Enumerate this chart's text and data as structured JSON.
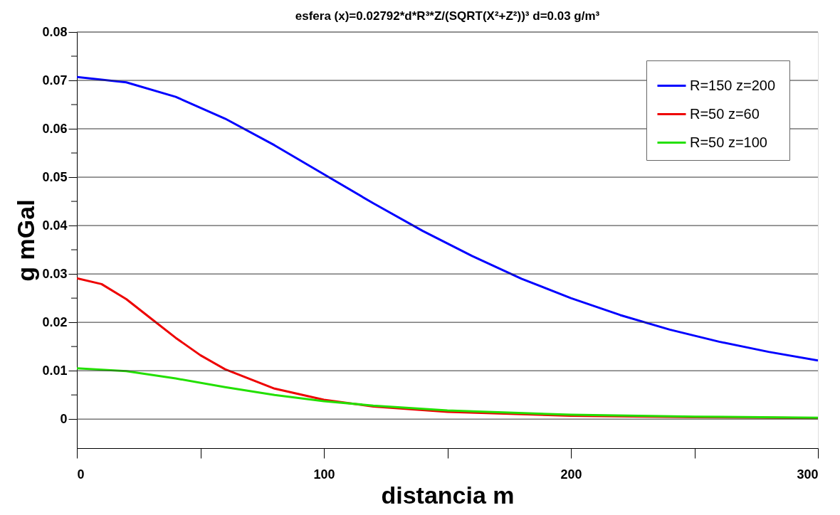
{
  "chart_data": {
    "type": "line",
    "title": "esfera   (x)=0.02792*d*R³*Z/(SQRT(X²+Z²))³          d=0.03 g/m³",
    "xlabel": "distancia  m",
    "ylabel": "g  mGal",
    "xlim": [
      0,
      300
    ],
    "xticks": [
      0,
      {
        "value": 50,
        "label": null
      },
      100,
      {
        "value": 150,
        "label": null
      },
      200,
      {
        "value": 250,
        "label": null
      },
      300
    ],
    "ylim": [
      -0.006,
      0.08
    ],
    "yticks": [
      0,
      {
        "value": 0.005,
        "label": null
      },
      0.01,
      {
        "value": 0.015,
        "label": null
      },
      0.02,
      {
        "value": 0.025,
        "label": null
      },
      0.03,
      {
        "value": 0.035,
        "label": null
      },
      0.04,
      {
        "value": 0.045,
        "label": null
      },
      0.05,
      {
        "value": 0.055,
        "label": null
      },
      0.06,
      {
        "value": 0.065,
        "label": null
      },
      0.07,
      {
        "value": 0.075,
        "label": null
      },
      0.08
    ],
    "grid": "y",
    "legend": "top right",
    "marker": "none",
    "line_style": "solid",
    "series": [
      {
        "name": "R=150  z=200",
        "color": "#0000ff",
        "x": [
          0,
          20,
          40,
          60,
          80,
          100,
          120,
          140,
          160,
          180,
          200,
          220,
          240,
          260,
          280,
          300
        ],
        "values": [
          0.0707,
          0.0696,
          0.0666,
          0.0621,
          0.0566,
          0.0506,
          0.0446,
          0.0389,
          0.0337,
          0.029,
          0.025,
          0.0215,
          0.0185,
          0.016,
          0.0139,
          0.0121
        ]
      },
      {
        "name": "R=50   z=60",
        "color": "#ee0000",
        "x": [
          0,
          10,
          20,
          30,
          40,
          50,
          60,
          80,
          100,
          120,
          150,
          200,
          250,
          300
        ],
        "values": [
          0.0291,
          0.0279,
          0.0248,
          0.0208,
          0.0168,
          0.0132,
          0.0103,
          0.0063,
          0.004,
          0.0026,
          0.0015,
          0.0007,
          0.0004,
          0.0002
        ]
      },
      {
        "name": "R=50   z=100",
        "color": "#22e000",
        "x": [
          0,
          20,
          40,
          60,
          80,
          100,
          120,
          150,
          200,
          250,
          300
        ],
        "values": [
          0.0105,
          0.0099,
          0.0084,
          0.0066,
          0.005,
          0.0037,
          0.0028,
          0.0018,
          0.0009,
          0.0005,
          0.0003
        ]
      }
    ]
  }
}
